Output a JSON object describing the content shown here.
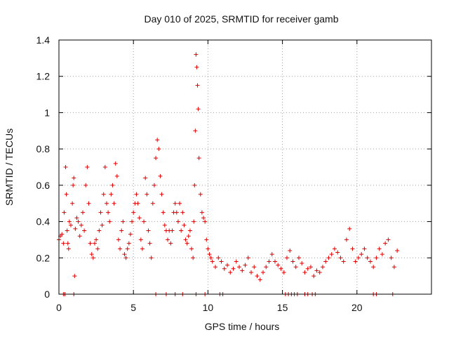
{
  "chart_data": {
    "type": "scatter",
    "title": "Day 010 of 2025, SRMTID for receiver gamb",
    "xlabel": "GPS time / hours",
    "ylabel": "SRMTID / TECUs",
    "xlim": [
      0,
      25
    ],
    "ylim": [
      0,
      1.4
    ],
    "xticks": [
      0,
      5,
      10,
      15,
      20
    ],
    "xtick_labels": [
      "0",
      "5",
      "10",
      "15",
      "20"
    ],
    "yticks": [
      0,
      0.2,
      0.4,
      0.6,
      0.8,
      1.0,
      1.2,
      1.4
    ],
    "ytick_labels": [
      "0",
      "0.2",
      "0.4",
      "0.6",
      "0.8",
      "1",
      "1.2",
      "1.4"
    ],
    "grid": true,
    "marker": "+",
    "series": [
      {
        "name": "SRMTID",
        "color": "#dd0000",
        "x": [
          0.0,
          0.1,
          0.2,
          0.3,
          0.35,
          0.45,
          0.5,
          0.55,
          0.6,
          0.65,
          0.7,
          0.8,
          0.9,
          0.95,
          1.0,
          1.05,
          1.1,
          1.2,
          1.3,
          1.4,
          1.5,
          1.6,
          1.7,
          1.8,
          1.9,
          2.0,
          2.1,
          2.2,
          2.3,
          2.4,
          2.5,
          2.6,
          2.7,
          2.8,
          2.9,
          3.0,
          3.1,
          3.2,
          3.3,
          3.4,
          3.5,
          3.6,
          3.7,
          3.8,
          3.9,
          4.0,
          4.1,
          4.2,
          4.3,
          4.4,
          4.5,
          4.6,
          4.7,
          4.8,
          4.9,
          5.0,
          5.1,
          5.2,
          5.3,
          5.4,
          5.5,
          5.6,
          5.7,
          5.8,
          5.9,
          6.0,
          6.1,
          6.2,
          6.3,
          6.4,
          6.5,
          6.6,
          6.7,
          6.8,
          6.9,
          7.0,
          7.1,
          7.2,
          7.3,
          7.4,
          7.5,
          7.6,
          7.7,
          7.8,
          7.9,
          8.0,
          8.1,
          8.2,
          8.3,
          8.4,
          8.5,
          8.6,
          8.7,
          8.8,
          8.9,
          9.0,
          9.05,
          9.1,
          9.15,
          9.2,
          9.25,
          9.3,
          9.35,
          9.4,
          9.5,
          9.6,
          9.7,
          9.8,
          9.9,
          10.0,
          10.1,
          10.2,
          10.3,
          10.5,
          10.7,
          10.9,
          11.1,
          11.3,
          11.5,
          11.7,
          11.9,
          12.1,
          12.3,
          12.5,
          12.7,
          12.9,
          13.1,
          13.3,
          13.5,
          13.7,
          13.9,
          14.1,
          14.3,
          14.5,
          14.7,
          14.9,
          15.1,
          15.3,
          15.5,
          15.7,
          15.9,
          16.1,
          16.3,
          16.5,
          16.7,
          16.9,
          17.1,
          17.3,
          17.5,
          17.7,
          17.9,
          18.1,
          18.3,
          18.5,
          18.7,
          18.9,
          19.1,
          19.3,
          19.5,
          19.7,
          19.9,
          20.1,
          20.3,
          20.5,
          20.7,
          20.9,
          21.1,
          21.3,
          21.5,
          21.7,
          21.9,
          22.1,
          22.3,
          22.5,
          22.7,
          0.3,
          0.4,
          1.0,
          6.5,
          7.2,
          7.8,
          8.3,
          9.2,
          9.8,
          10.8,
          11.0,
          15.2,
          15.4,
          15.6,
          15.8,
          16.0,
          16.5,
          16.7,
          17.0,
          17.2,
          21.1,
          21.3,
          22.4
        ],
        "y": [
          0.3,
          0.32,
          0.33,
          0.28,
          0.45,
          0.7,
          0.55,
          0.35,
          0.28,
          0.25,
          0.4,
          0.38,
          0.5,
          0.6,
          0.64,
          0.1,
          0.36,
          0.42,
          0.4,
          0.32,
          0.38,
          0.45,
          0.35,
          0.6,
          0.7,
          0.5,
          0.28,
          0.22,
          0.2,
          0.28,
          0.3,
          0.25,
          0.35,
          0.45,
          0.38,
          0.55,
          0.7,
          0.5,
          0.45,
          0.4,
          0.55,
          0.6,
          0.5,
          0.72,
          0.65,
          0.3,
          0.25,
          0.35,
          0.4,
          0.22,
          0.2,
          0.25,
          0.28,
          0.33,
          0.4,
          0.45,
          0.5,
          0.55,
          0.5,
          0.42,
          0.3,
          0.25,
          0.4,
          0.64,
          0.55,
          0.35,
          0.28,
          0.2,
          0.5,
          0.6,
          0.75,
          0.85,
          0.8,
          0.65,
          0.55,
          0.45,
          0.38,
          0.35,
          0.3,
          0.35,
          0.28,
          0.35,
          0.45,
          0.5,
          0.45,
          0.4,
          0.5,
          0.35,
          0.45,
          0.38,
          0.3,
          0.28,
          0.32,
          0.35,
          0.25,
          0.2,
          0.4,
          0.6,
          0.9,
          1.32,
          1.25,
          1.15,
          1.02,
          0.75,
          0.55,
          0.45,
          0.42,
          0.4,
          0.3,
          0.25,
          0.22,
          0.2,
          0.18,
          0.15,
          0.2,
          0.18,
          0.14,
          0.16,
          0.12,
          0.14,
          0.18,
          0.15,
          0.13,
          0.16,
          0.2,
          0.12,
          0.15,
          0.1,
          0.08,
          0.12,
          0.15,
          0.18,
          0.22,
          0.18,
          0.16,
          0.14,
          0.12,
          0.2,
          0.24,
          0.18,
          0.15,
          0.2,
          0.17,
          0.12,
          0.14,
          0.15,
          0.1,
          0.13,
          0.12,
          0.15,
          0.18,
          0.2,
          0.22,
          0.25,
          0.23,
          0.2,
          0.18,
          0.3,
          0.36,
          0.25,
          0.18,
          0.2,
          0.22,
          0.25,
          0.2,
          0.18,
          0.15,
          0.2,
          0.25,
          0.22,
          0.28,
          0.3,
          0.2,
          0.15,
          0.24,
          0.0,
          0.0,
          0.0,
          0.0,
          0.0,
          0.0,
          0.0,
          0.0,
          0.0,
          0.0,
          0.0,
          0.0,
          0.0,
          0.0,
          0.0,
          0.0,
          0.0,
          0.0,
          0.0,
          0.0,
          0.0,
          0.0,
          0.0
        ]
      }
    ]
  }
}
